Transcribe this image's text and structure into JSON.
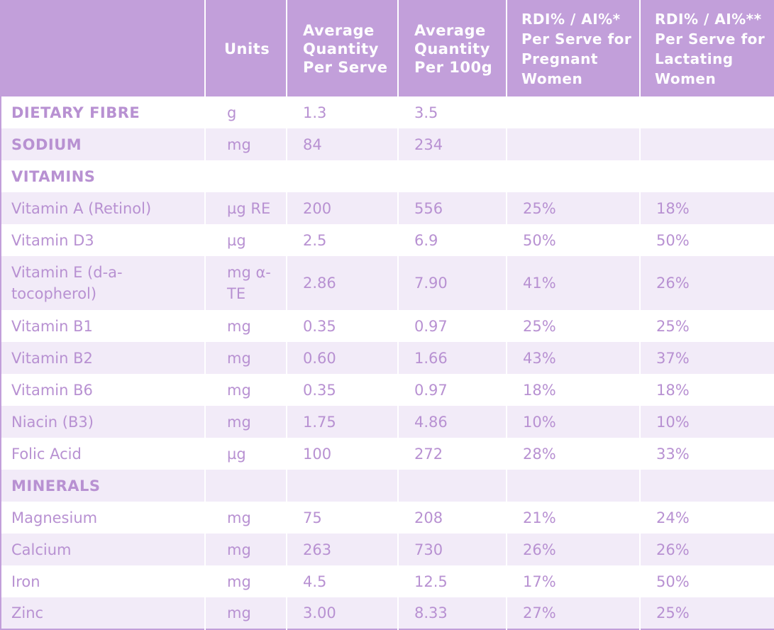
{
  "headers": {
    "nutrient": "",
    "units": "Units",
    "avg_per_serve": "Average Quantity Per Serve",
    "avg_per_100g": "Average Quantity Per 100g",
    "rdi_pregnant": "RDI% / AI%* Per Serve for Pregnant Women",
    "rdi_lactating": "RDI% / AI%** Per Serve for Lactating Women"
  },
  "rows": [
    {
      "name": "DIETARY FIBRE",
      "units": "g",
      "per_serve": "1.3",
      "per_100g": "3.5",
      "rdi_pregnant": "",
      "rdi_lactating": ""
    },
    {
      "name": "SODIUM",
      "units": "mg",
      "per_serve": "84",
      "per_100g": "234",
      "rdi_pregnant": "",
      "rdi_lactating": ""
    },
    {
      "name": "VITAMINS",
      "units": "",
      "per_serve": "",
      "per_100g": "",
      "rdi_pregnant": "",
      "rdi_lactating": ""
    },
    {
      "name": "Vitamin A (Retinol)",
      "units": "µg RE",
      "per_serve": "200",
      "per_100g": "556",
      "rdi_pregnant": "25%",
      "rdi_lactating": "18%"
    },
    {
      "name": "Vitamin D3",
      "units": "µg",
      "per_serve": "2.5",
      "per_100g": "6.9",
      "rdi_pregnant": "50%",
      "rdi_lactating": "50%"
    },
    {
      "name": "Vitamin E (d-a-tocopherol)",
      "units": "mg α-TE",
      "per_serve": "2.86",
      "per_100g": "7.90",
      "rdi_pregnant": "41%",
      "rdi_lactating": "26%"
    },
    {
      "name": "Vitamin B1",
      "units": "mg",
      "per_serve": "0.35",
      "per_100g": "0.97",
      "rdi_pregnant": "25%",
      "rdi_lactating": "25%"
    },
    {
      "name": "Vitamin B2",
      "units": "mg",
      "per_serve": "0.60",
      "per_100g": "1.66",
      "rdi_pregnant": "43%",
      "rdi_lactating": "37%"
    },
    {
      "name": "Vitamin B6",
      "units": "mg",
      "per_serve": "0.35",
      "per_100g": "0.97",
      "rdi_pregnant": "18%",
      "rdi_lactating": "18%"
    },
    {
      "name": "Niacin (B3)",
      "units": "mg",
      "per_serve": "1.75",
      "per_100g": "4.86",
      "rdi_pregnant": "10%",
      "rdi_lactating": "10%"
    },
    {
      "name": "Folic Acid",
      "units": "µg",
      "per_serve": "100",
      "per_100g": "272",
      "rdi_pregnant": "28%",
      "rdi_lactating": "33%"
    },
    {
      "name": "MINERALS",
      "units": "",
      "per_serve": "",
      "per_100g": "",
      "rdi_pregnant": "",
      "rdi_lactating": ""
    },
    {
      "name": "Magnesium",
      "units": "mg",
      "per_serve": "75",
      "per_100g": "208",
      "rdi_pregnant": "21%",
      "rdi_lactating": "24%"
    },
    {
      "name": "Calcium",
      "units": "mg",
      "per_serve": "263",
      "per_100g": "730",
      "rdi_pregnant": "26%",
      "rdi_lactating": "26%"
    },
    {
      "name": "Iron",
      "units": "mg",
      "per_serve": "4.5",
      "per_100g": "12.5",
      "rdi_pregnant": "17%",
      "rdi_lactating": "50%"
    },
    {
      "name": "Zinc",
      "units": "mg",
      "per_serve": "3.00",
      "per_100g": "8.33",
      "rdi_pregnant": "27%",
      "rdi_lactating": "25%"
    }
  ],
  "colors": {
    "header_bg": "#c29fda",
    "header_text": "#ffffff",
    "body_text": "#b891d2",
    "stripe": "#f2ebf8"
  }
}
